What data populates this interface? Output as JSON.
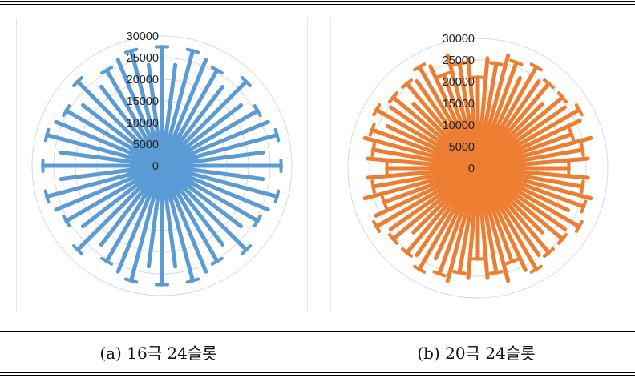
{
  "chart_data": [
    {
      "type": "polar-line",
      "caption": "(a)  16극  24슬롯",
      "r_ticks": [
        "30000",
        "25000",
        "20000",
        "15000",
        "10000",
        "5000",
        "0"
      ],
      "r_lim": [
        0,
        30000
      ],
      "grid": true,
      "series": [
        {
          "color": "#5B9BD5",
          "spokes": 48,
          "peaks": [
            27500,
            23500,
            27500,
            26500,
            25500,
            23000,
            27500,
            23000,
            25500,
            26500,
            27500,
            23500,
            27500,
            23500,
            27500,
            26500,
            25500,
            23000,
            27500,
            23000,
            25500,
            26500,
            27500,
            23500,
            27500,
            23500,
            27500,
            26500,
            25500,
            23000,
            27500,
            23000,
            25500,
            26500,
            27500,
            23500,
            27500,
            23500,
            27500,
            26500,
            25500,
            23000,
            27500,
            23000,
            25500,
            26500,
            27500,
            23500
          ]
        }
      ]
    },
    {
      "type": "polar-line",
      "caption": "(b)  20극  24슬롯",
      "r_ticks": [
        "30000",
        "25000",
        "20000",
        "15000",
        "10000",
        "5000",
        "0"
      ],
      "r_lim": [
        0,
        30000
      ],
      "grid": true,
      "series": [
        {
          "color": "#ED7D31",
          "spokes": 72,
          "peaks": [
            21000,
            25500,
            24500,
            27000,
            26000,
            23000,
            27000,
            24500,
            25500,
            21000,
            25500,
            24500,
            27000,
            26000,
            23000,
            27000,
            24500,
            25500,
            21000,
            25500,
            24500,
            27000,
            26000,
            23000,
            27000,
            24500,
            25500,
            21000,
            25500,
            24500,
            27000,
            26000,
            23000,
            27000,
            24500,
            25500,
            21000,
            25500,
            24500,
            27000,
            26000,
            23000,
            27000,
            24500,
            25500,
            21000,
            25500,
            24500,
            27000,
            26000,
            23000,
            27000,
            24500,
            25500,
            21000,
            25500,
            24500,
            27000,
            26000,
            23000,
            27000,
            24500,
            25500,
            21000,
            25500,
            24500,
            27000,
            26000,
            23000,
            27000,
            24500,
            25500
          ]
        }
      ]
    }
  ]
}
